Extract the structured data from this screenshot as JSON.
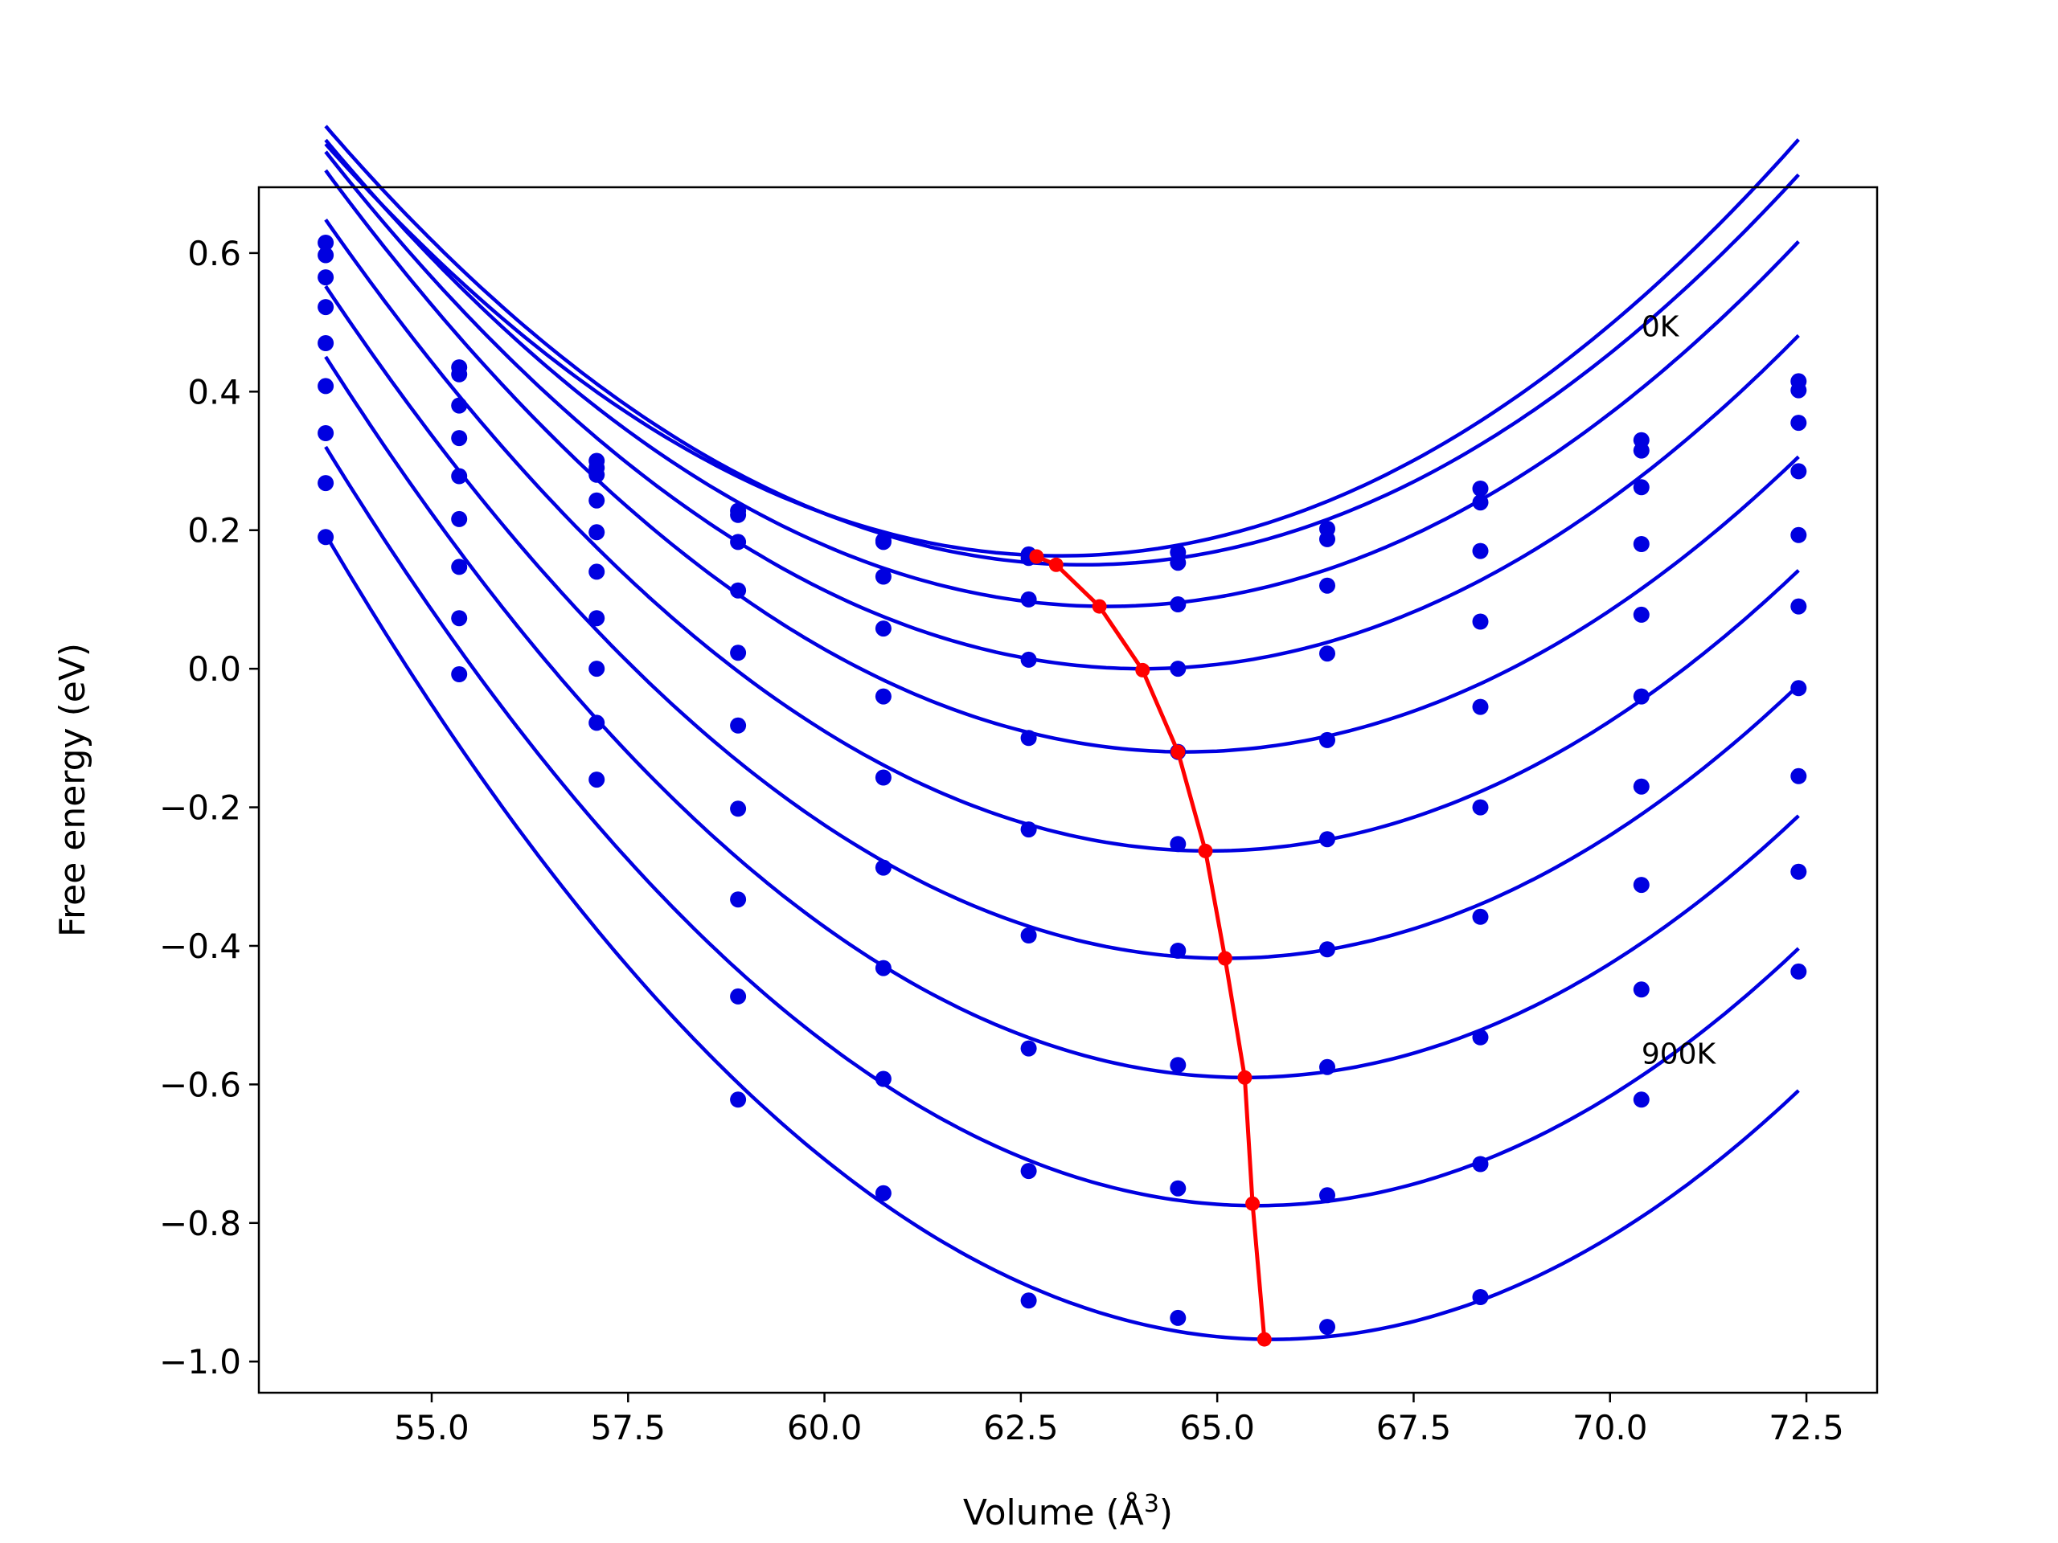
{
  "chart_data": {
    "type": "line",
    "title": "",
    "xlabel": "Volume (Å",
    "xlabel_sup": "3",
    "xlabel_close": ")",
    "ylabel": "Free energy (eV)",
    "xlim": [
      52.8,
      73.4
    ],
    "ylim": [
      -1.045,
      0.695
    ],
    "xticks": [
      55.0,
      57.5,
      60.0,
      62.5,
      65.0,
      67.5,
      70.0,
      72.5
    ],
    "xtick_labels": [
      "55.0",
      "57.5",
      "60.0",
      "62.5",
      "65.0",
      "67.5",
      "70.0",
      "72.5"
    ],
    "yticks": [
      0.6,
      0.4,
      0.2,
      0.0,
      -0.2,
      -0.4,
      -0.6,
      -0.8,
      -1.0
    ],
    "ytick_labels": [
      "0.6",
      "0.4",
      "0.2",
      "0.0",
      "−0.2",
      "−0.4",
      "−0.6",
      "−0.8",
      "−1.0"
    ],
    "grid": false,
    "colors": {
      "curves": "#0000e0",
      "points": "#0000e0",
      "minima": "#ff0000"
    },
    "annotations": [
      {
        "text": "0K",
        "x": 70.4,
        "y": 0.48
      },
      {
        "text": "900K",
        "x": 70.4,
        "y": -0.57
      }
    ],
    "volumes": [
      53.65,
      55.35,
      57.1,
      58.9,
      60.75,
      62.6,
      64.5,
      66.4,
      68.35,
      70.4,
      72.4
    ],
    "curve_x_range": [
      53.65,
      72.4
    ],
    "series": [
      {
        "values": [
          0.615,
          0.435,
          0.3,
          0.228,
          0.185,
          0.165,
          0.168,
          0.202,
          0.26,
          0.33,
          0.415
        ],
        "fit": {
          "a": 0.0068,
          "v0": 63.0,
          "f0": 0.163
        }
      },
      {
        "values": [
          0.597,
          0.425,
          0.29,
          0.222,
          0.183,
          0.16,
          0.153,
          0.187,
          0.24,
          0.315,
          0.402
        ],
        "fit": {
          "a": 0.0068,
          "v0": 63.3,
          "f0": 0.15
        }
      },
      {
        "values": [
          0.565,
          0.38,
          0.28,
          0.183,
          0.133,
          0.1,
          0.093,
          0.12,
          0.17,
          0.262,
          0.355
        ],
        "fit": {
          "a": 0.0068,
          "v0": 63.6,
          "f0": 0.09
        }
      },
      {
        "values": [
          0.522,
          0.333,
          0.243,
          0.113,
          0.058,
          0.013,
          0.0,
          0.022,
          0.068,
          0.18,
          0.285
        ],
        "fit": {
          "a": 0.0069,
          "v0": 64.05,
          "f0": 0.0
        }
      },
      {
        "values": [
          0.47,
          0.278,
          0.197,
          0.023,
          -0.04,
          -0.1,
          -0.12,
          -0.103,
          -0.055,
          0.078,
          0.193
        ],
        "fit": {
          "a": 0.007,
          "v0": 64.6,
          "f0": -0.12
        }
      },
      {
        "values": [
          0.408,
          0.216,
          0.14,
          -0.082,
          -0.157,
          -0.232,
          -0.253,
          -0.246,
          -0.2,
          -0.04,
          0.09
        ],
        "fit": {
          "a": 0.0072,
          "v0": 64.9,
          "f0": -0.263
        }
      },
      {
        "values": [
          0.34,
          0.147,
          0.073,
          -0.202,
          -0.287,
          -0.385,
          -0.407,
          -0.405,
          -0.358,
          -0.17,
          -0.028
        ],
        "fit": {
          "a": 0.0074,
          "v0": 65.1,
          "f0": -0.418
        }
      },
      {
        "values": [
          0.268,
          0.073,
          0.0,
          -0.333,
          -0.432,
          -0.548,
          -0.572,
          -0.575,
          -0.532,
          -0.312,
          -0.155
        ],
        "fit": {
          "a": 0.0076,
          "v0": 65.35,
          "f0": -0.59
        }
      },
      {
        "values": [
          0.19,
          -0.008,
          -0.078,
          -0.473,
          -0.592,
          -0.725,
          -0.75,
          -0.76,
          -0.715,
          -0.463,
          -0.293
        ],
        "fit": {
          "a": 0.0078,
          "v0": 65.5,
          "f0": -0.775
        }
      },
      {
        "values": [
          null,
          null,
          -0.16,
          -0.622,
          -0.757,
          -0.912,
          -0.937,
          -0.95,
          -0.907,
          -0.622,
          -0.437
        ],
        "fit": {
          "a": 0.008,
          "v0": 65.7,
          "f0": -0.968
        }
      }
    ],
    "minima_line": {
      "x": [
        62.7,
        62.95,
        63.5,
        64.05,
        64.5,
        64.85,
        65.1,
        65.35,
        65.45,
        65.6
      ],
      "y": [
        0.162,
        0.15,
        0.09,
        -0.002,
        -0.12,
        -0.263,
        -0.418,
        -0.59,
        -0.772,
        -0.968
      ]
    }
  }
}
